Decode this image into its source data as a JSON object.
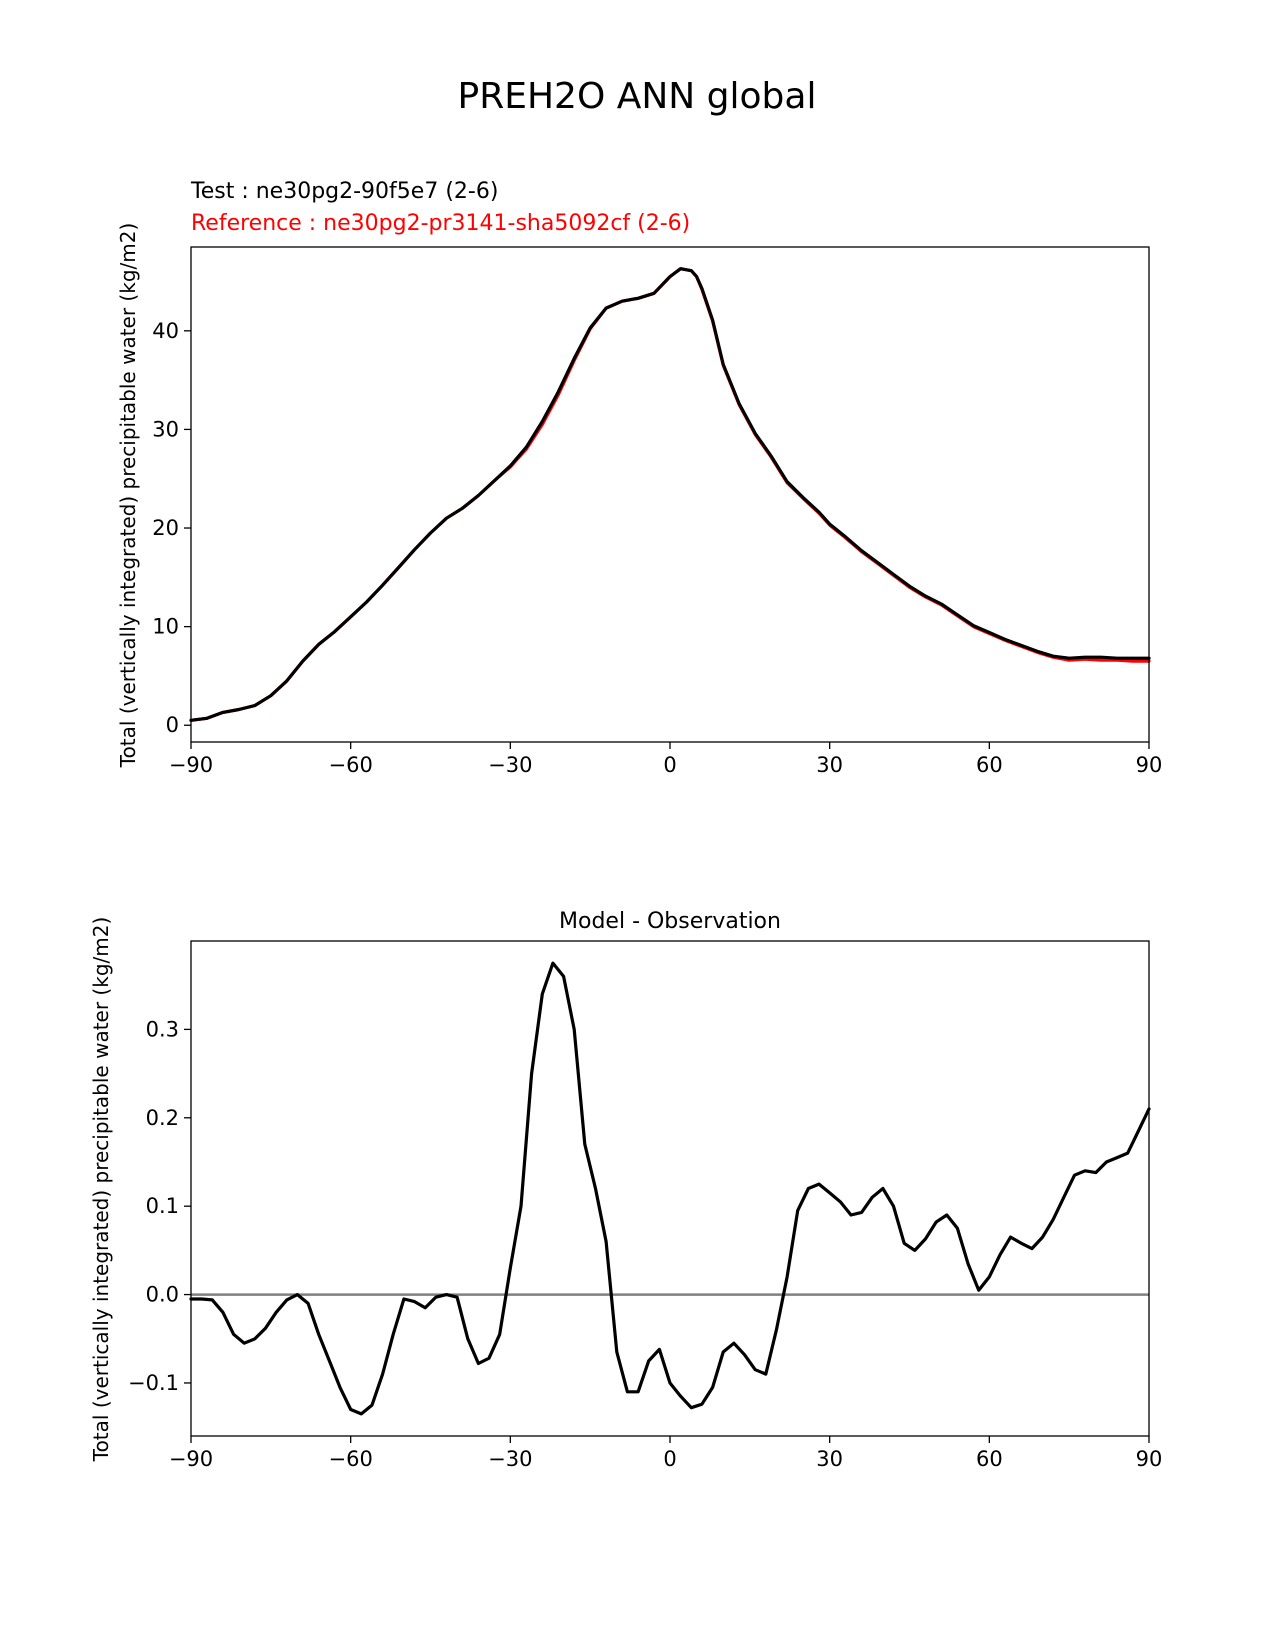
{
  "figure": {
    "title": "PREH2O ANN global"
  },
  "chart_data": [
    {
      "type": "line",
      "panel": "top",
      "title_test": "Test : ne30pg2-90f5e7 (2-6)",
      "title_reference": "Reference : ne30pg2-pr3141-sha5092cf (2-6)",
      "xlabel": "",
      "ylabel": "Total (vertically integrated) precipitable water (kg/m2)",
      "xlim": [
        -90,
        90
      ],
      "ylim": [
        -1.7,
        48.5
      ],
      "xticks": [
        -90,
        -60,
        -30,
        0,
        30,
        60,
        90
      ],
      "xtick_labels": [
        "−90",
        "−60",
        "−30",
        "0",
        "30",
        "60",
        "90"
      ],
      "yticks": [
        0,
        10,
        20,
        30,
        40
      ],
      "ytick_labels": [
        "0",
        "10",
        "20",
        "30",
        "40"
      ],
      "series": [
        {
          "name": "Reference",
          "color": "#ff0000",
          "x": [
            -90,
            -87,
            -84,
            -81,
            -78,
            -75,
            -72,
            -69,
            -66,
            -63,
            -60,
            -57,
            -54,
            -51,
            -48,
            -45,
            -42,
            -39,
            -36,
            -33,
            -30,
            -27,
            -24,
            -21,
            -18,
            -15,
            -12,
            -9,
            -6,
            -3,
            0,
            2,
            4,
            5,
            6,
            8,
            10,
            13,
            16,
            19,
            22,
            25,
            28,
            30,
            33,
            36,
            39,
            42,
            45,
            48,
            51,
            54,
            57,
            60,
            63,
            66,
            69,
            72,
            75,
            78,
            81,
            84,
            87,
            90
          ],
          "values": [
            0.5,
            0.7,
            1.3,
            1.6,
            2.0,
            3.0,
            4.5,
            6.5,
            8.2,
            9.5,
            11.0,
            12.5,
            14.2,
            16.0,
            17.8,
            19.5,
            21.0,
            22.0,
            23.3,
            24.8,
            26.2,
            28.0,
            30.5,
            33.5,
            37.0,
            40.2,
            42.3,
            43.0,
            43.3,
            43.8,
            45.5,
            46.3,
            46.1,
            45.5,
            44.2,
            41.0,
            36.5,
            32.5,
            29.5,
            27.2,
            24.6,
            23.0,
            21.5,
            20.3,
            19.0,
            17.6,
            16.4,
            15.2,
            14.0,
            13.0,
            12.2,
            11.1,
            10.0,
            9.3,
            8.6,
            8.0,
            7.4,
            6.9,
            6.6,
            6.7,
            6.6,
            6.6,
            6.5,
            6.5
          ]
        },
        {
          "name": "Test",
          "color": "#000000",
          "x": [
            -90,
            -87,
            -84,
            -81,
            -78,
            -75,
            -72,
            -69,
            -66,
            -63,
            -60,
            -57,
            -54,
            -51,
            -48,
            -45,
            -42,
            -39,
            -36,
            -33,
            -30,
            -27,
            -24,
            -21,
            -18,
            -15,
            -12,
            -9,
            -6,
            -3,
            0,
            2,
            4,
            5,
            6,
            8,
            10,
            13,
            16,
            19,
            22,
            25,
            28,
            30,
            33,
            36,
            39,
            42,
            45,
            48,
            51,
            54,
            57,
            60,
            63,
            66,
            69,
            72,
            75,
            78,
            81,
            84,
            87,
            90
          ],
          "values": [
            0.5,
            0.7,
            1.3,
            1.6,
            2.0,
            3.0,
            4.5,
            6.5,
            8.2,
            9.5,
            11.0,
            12.5,
            14.2,
            16.0,
            17.8,
            19.5,
            21.0,
            22.0,
            23.3,
            24.8,
            26.3,
            28.2,
            30.8,
            33.8,
            37.2,
            40.3,
            42.3,
            43.0,
            43.3,
            43.8,
            45.5,
            46.3,
            46.1,
            45.5,
            44.3,
            41.1,
            36.6,
            32.6,
            29.6,
            27.3,
            24.7,
            23.1,
            21.6,
            20.4,
            19.1,
            17.7,
            16.5,
            15.3,
            14.1,
            13.1,
            12.3,
            11.2,
            10.1,
            9.4,
            8.7,
            8.1,
            7.5,
            7.0,
            6.8,
            6.9,
            6.9,
            6.8,
            6.8,
            6.8
          ]
        }
      ]
    },
    {
      "type": "line",
      "panel": "bottom",
      "title": "Model - Observation",
      "xlabel": "",
      "ylabel": "Total (vertically integrated) precipitable water (kg/m2)",
      "xlim": [
        -90,
        90
      ],
      "ylim": [
        -0.16,
        0.4
      ],
      "xticks": [
        -90,
        -60,
        -30,
        0,
        30,
        60,
        90
      ],
      "xtick_labels": [
        "−90",
        "−60",
        "−30",
        "0",
        "30",
        "60",
        "90"
      ],
      "yticks": [
        -0.1,
        0.0,
        0.1,
        0.2,
        0.3
      ],
      "ytick_labels": [
        "−0.1",
        "0.0",
        "0.1",
        "0.2",
        "0.3"
      ],
      "zero_line": {
        "y": 0.0,
        "color": "#808080"
      },
      "series": [
        {
          "name": "Model - Observation",
          "color": "#000000",
          "x": [
            -90,
            -88,
            -86,
            -84,
            -82,
            -80,
            -78,
            -76,
            -74,
            -72,
            -70,
            -68,
            -66,
            -64,
            -62,
            -60,
            -58,
            -56,
            -54,
            -52,
            -50,
            -48,
            -46,
            -44,
            -42,
            -40,
            -38,
            -36,
            -34,
            -32,
            -30,
            -28,
            -26,
            -24,
            -22,
            -20,
            -18,
            -16,
            -14,
            -12,
            -10,
            -8,
            -6,
            -4,
            -2,
            0,
            2,
            4,
            6,
            8,
            10,
            12,
            14,
            16,
            18,
            20,
            22,
            24,
            26,
            28,
            30,
            32,
            34,
            36,
            38,
            40,
            42,
            44,
            46,
            48,
            50,
            52,
            54,
            56,
            58,
            60,
            62,
            64,
            66,
            68,
            70,
            72,
            74,
            76,
            78,
            80,
            82,
            84,
            86,
            88,
            90
          ],
          "values": [
            -0.005,
            -0.005,
            -0.006,
            -0.02,
            -0.045,
            -0.055,
            -0.05,
            -0.038,
            -0.02,
            -0.006,
            0.0,
            -0.01,
            -0.045,
            -0.075,
            -0.105,
            -0.13,
            -0.135,
            -0.125,
            -0.09,
            -0.045,
            -0.005,
            -0.008,
            -0.015,
            -0.003,
            0.0,
            -0.003,
            -0.05,
            -0.078,
            -0.072,
            -0.045,
            0.03,
            0.1,
            0.25,
            0.34,
            0.375,
            0.36,
            0.3,
            0.17,
            0.12,
            0.06,
            -0.065,
            -0.11,
            -0.11,
            -0.075,
            -0.062,
            -0.1,
            -0.115,
            -0.128,
            -0.124,
            -0.105,
            -0.065,
            -0.055,
            -0.068,
            -0.085,
            -0.09,
            -0.04,
            0.02,
            0.095,
            0.12,
            0.125,
            0.115,
            0.105,
            0.09,
            0.093,
            0.11,
            0.12,
            0.1,
            0.058,
            0.05,
            0.063,
            0.082,
            0.09,
            0.075,
            0.035,
            0.005,
            0.02,
            0.045,
            0.065,
            0.058,
            0.052,
            0.065,
            0.085,
            0.11,
            0.135,
            0.14,
            0.138,
            0.15,
            0.155,
            0.16,
            0.185,
            0.21
          ]
        }
      ]
    }
  ]
}
